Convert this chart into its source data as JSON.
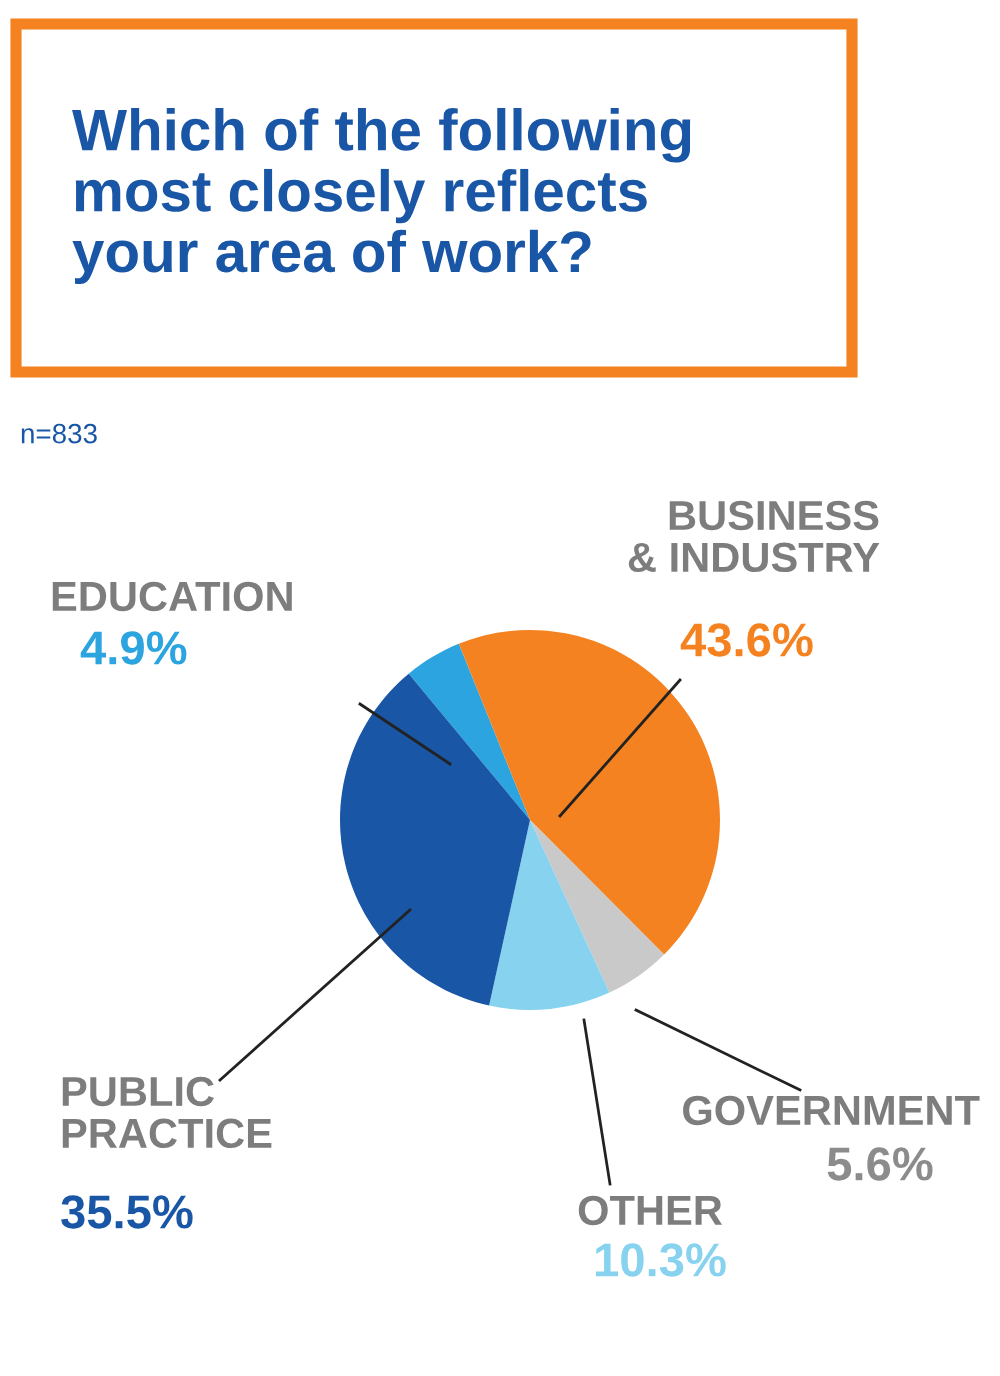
{
  "chart_data": {
    "type": "pie",
    "title": "Which of the following\nmost closely reflects\nyour area of work?",
    "annotations": [
      "n=833"
    ],
    "categories": [
      "EDUCATION",
      "BUSINESS\n& INDUSTRY",
      "GOVERNMENT",
      "OTHER",
      "PUBLIC\nPRACTICE"
    ],
    "values": [
      4.9,
      43.6,
      5.6,
      10.3,
      35.5
    ],
    "value_labels": [
      "4.9%",
      "43.6%",
      "5.6%",
      "10.3%",
      "35.5%"
    ],
    "colors": [
      "#2ba4df",
      "#f58220",
      "#c9c9c9",
      "#86d2ef",
      "#1a56a6"
    ],
    "legend": false
  }
}
